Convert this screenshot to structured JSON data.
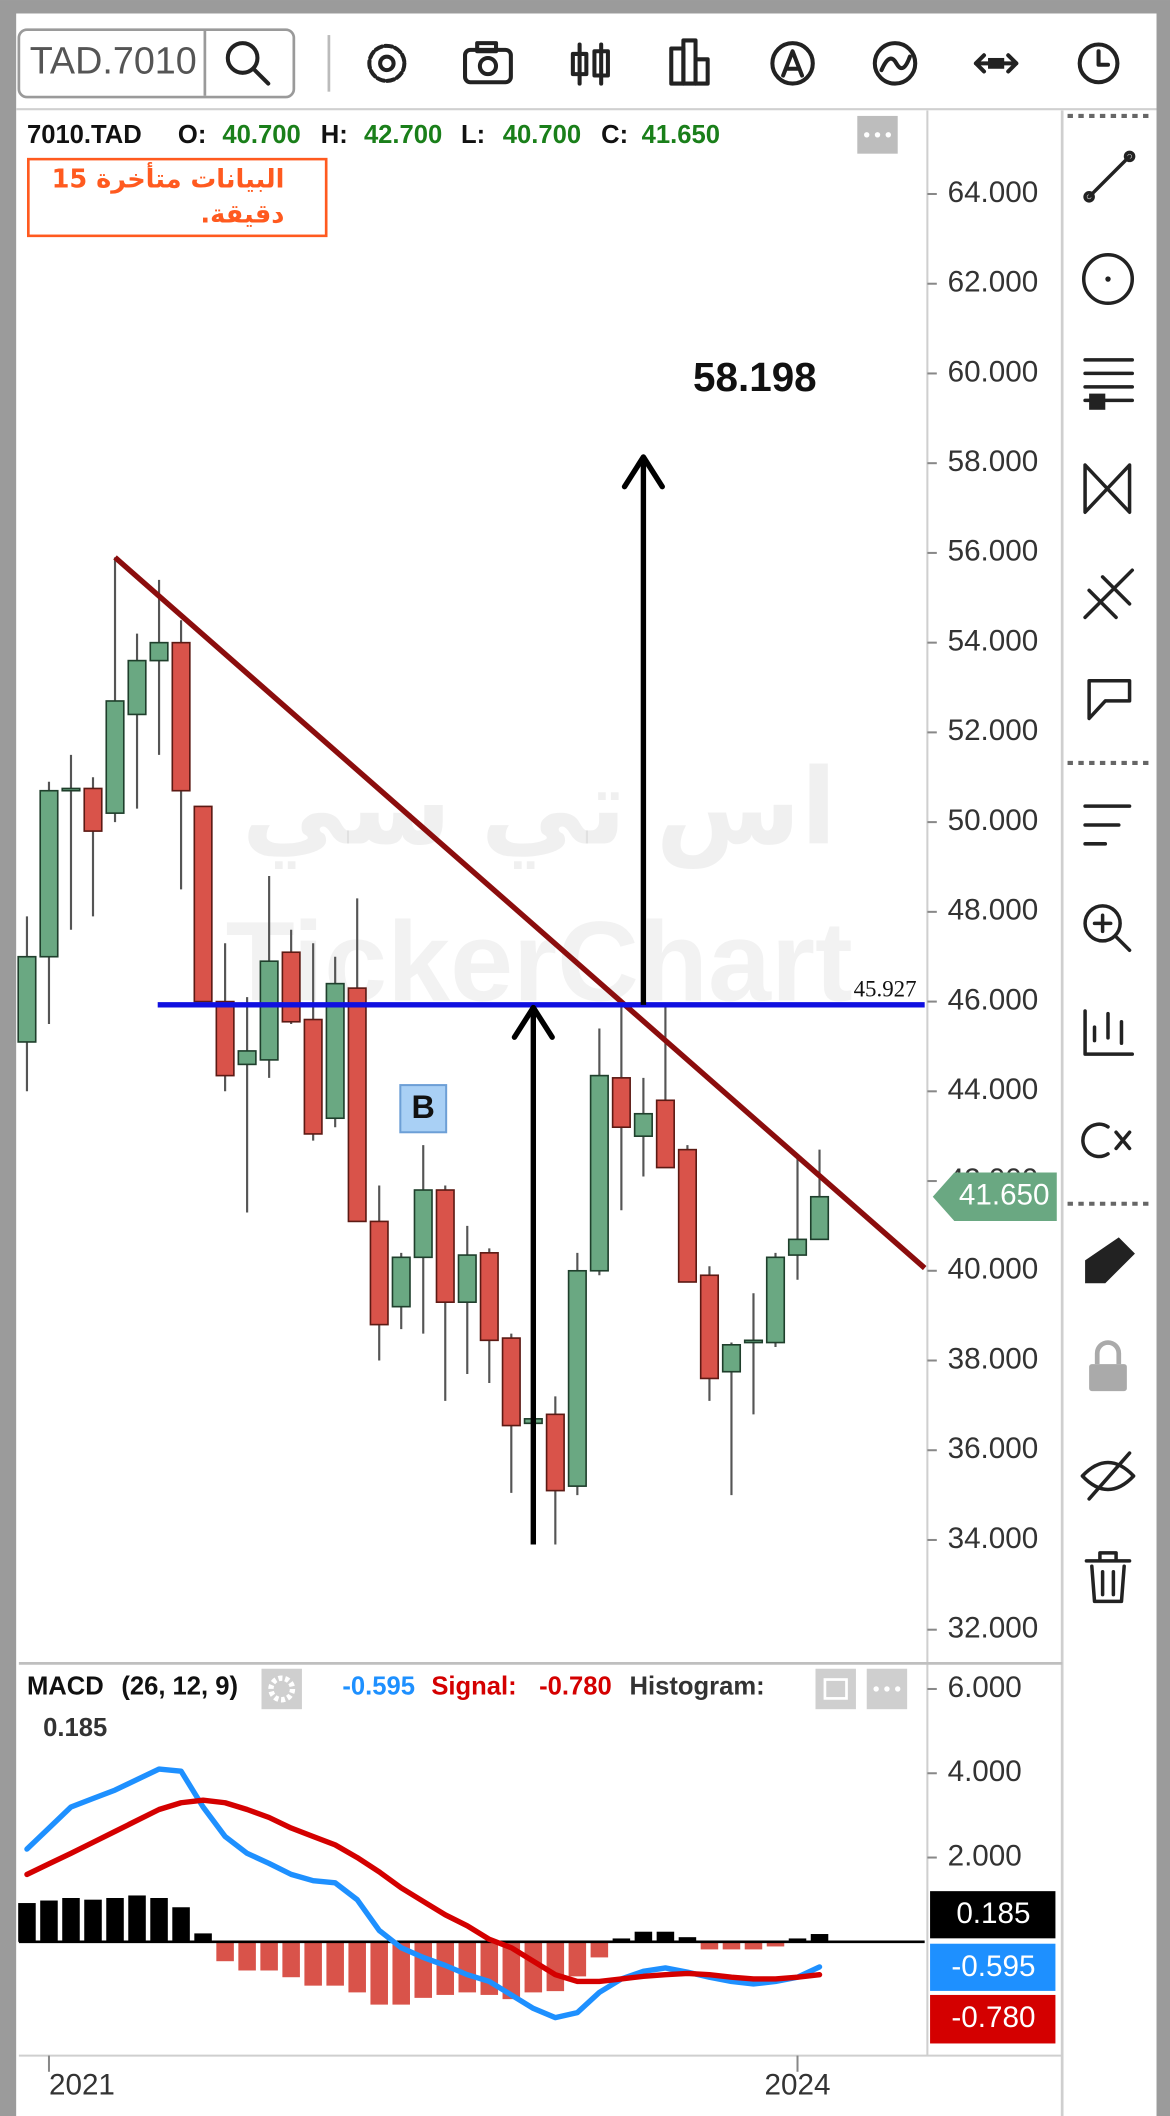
{
  "toolbar": {
    "symbol": "TAD.7010"
  },
  "header": {
    "symbol": "7010.TAD",
    "fields": [
      {
        "key": "O:",
        "value": "40.700"
      },
      {
        "key": "H:",
        "value": "42.700"
      },
      {
        "key": "L:",
        "value": "40.700"
      },
      {
        "key": "C:",
        "value": "41.650"
      }
    ]
  },
  "notice": "البيانات متأخرة 15 دقيقة.",
  "watermark": {
    "arabic": "اس تي سي",
    "latin": "TickerChart"
  },
  "chart_data": [
    {
      "type": "candlestick",
      "categories": [
        null,
        "2021",
        null,
        null,
        null,
        null,
        null,
        null,
        null,
        null,
        null,
        null,
        null,
        null,
        null,
        null,
        null,
        null,
        null,
        null,
        null,
        null,
        null,
        null,
        null,
        null,
        null,
        null,
        null,
        null,
        null,
        null,
        null,
        null,
        null,
        "2024",
        null
      ],
      "open": [
        45.1,
        47.0,
        50.7,
        50.75,
        50.2,
        52.4,
        53.6,
        54.0,
        50.35,
        46.0,
        44.6,
        44.7,
        47.1,
        45.6,
        43.4,
        46.3,
        41.1,
        39.2,
        40.3,
        41.8,
        39.3,
        40.4,
        38.5,
        36.6,
        36.8,
        35.2,
        40.0,
        44.3,
        43.0,
        43.8,
        42.7,
        39.9,
        37.75,
        38.4,
        38.4,
        40.35,
        40.7
      ],
      "high": [
        47.9,
        50.9,
        51.5,
        51.0,
        55.9,
        54.2,
        55.4,
        54.5,
        50.35,
        47.3,
        46.1,
        48.8,
        47.6,
        47.3,
        47.0,
        48.3,
        41.9,
        40.4,
        42.8,
        41.9,
        41.0,
        40.5,
        38.6,
        37.0,
        37.2,
        40.4,
        45.4,
        46.0,
        44.3,
        45.9,
        42.8,
        40.1,
        38.4,
        39.5,
        40.4,
        42.6,
        42.7
      ],
      "low": [
        44.0,
        45.5,
        47.6,
        47.9,
        50.0,
        50.3,
        51.5,
        48.5,
        46.0,
        44.0,
        41.3,
        44.3,
        45.5,
        42.9,
        43.2,
        41.1,
        38.0,
        38.7,
        38.6,
        37.1,
        37.7,
        37.5,
        35.05,
        34.1,
        33.9,
        35.0,
        39.9,
        41.35,
        42.1,
        42.3,
        39.75,
        37.1,
        35.0,
        36.8,
        38.3,
        39.8,
        40.7
      ],
      "close": [
        47.0,
        50.7,
        50.75,
        49.8,
        52.7,
        53.6,
        54.0,
        50.7,
        46.0,
        44.35,
        44.9,
        46.9,
        45.55,
        43.05,
        46.4,
        41.1,
        38.8,
        40.3,
        41.8,
        39.3,
        40.35,
        38.45,
        36.55,
        36.7,
        35.1,
        40.0,
        44.35,
        43.2,
        43.5,
        42.3,
        39.75,
        37.6,
        38.35,
        38.45,
        40.3,
        40.7,
        41.65
      ],
      "colors": {
        "up": "#6aa882",
        "down": "#d9534a"
      },
      "ylim": [
        31.28,
        65.86
      ],
      "yticks": [
        {
          "value": 32,
          "label": "32.000"
        },
        {
          "value": 34,
          "label": "34.000"
        },
        {
          "value": 36,
          "label": "36.000"
        },
        {
          "value": 38,
          "label": "38.000"
        },
        {
          "value": 40,
          "label": "40.000"
        },
        {
          "value": 42,
          "label": "42.000"
        },
        {
          "value": 44,
          "label": "44.000"
        },
        {
          "value": 46,
          "label": "46.000"
        },
        {
          "value": 48,
          "label": "48.000"
        },
        {
          "value": 50,
          "label": "50.000"
        },
        {
          "value": 52,
          "label": "52.000"
        },
        {
          "value": 54,
          "label": "54.000"
        },
        {
          "value": 56,
          "label": "56.000"
        },
        {
          "value": 58,
          "label": "58.000"
        },
        {
          "value": 60,
          "label": "60.000"
        },
        {
          "value": 62,
          "label": "62.000"
        },
        {
          "value": 64,
          "label": "64.000"
        }
      ],
      "last_price": {
        "value": 41.65,
        "label": "41.650"
      },
      "hline": 45.927,
      "target": 58.198,
      "trendline": [
        55.9,
        40.06
      ],
      "marker": "B"
    },
    {
      "type": "macd",
      "title": "MACD",
      "params": "(26, 12, 9)",
      "series": [
        {
          "type": "line",
          "color": "#1e90ff",
          "value_label": "-0.595",
          "values": [
            2.2,
            2.7,
            3.2,
            3.4,
            3.6,
            3.85,
            4.1,
            4.05,
            3.2,
            2.5,
            2.1,
            1.86,
            1.6,
            1.45,
            1.4,
            1.0,
            0.27,
            -0.14,
            -0.37,
            -0.56,
            -0.78,
            -0.94,
            -1.26,
            -1.58,
            -1.8,
            -1.68,
            -1.2,
            -0.88,
            -0.7,
            -0.62,
            -0.72,
            -0.84,
            -0.94,
            -1.0,
            -0.94,
            -0.84,
            -0.595
          ]
        },
        {
          "type": "line",
          "name": "Signal:",
          "color": "#d40000",
          "value_label": "-0.780",
          "values": [
            1.6,
            1.85,
            2.1,
            2.36,
            2.62,
            2.88,
            3.14,
            3.3,
            3.36,
            3.3,
            3.14,
            2.95,
            2.7,
            2.5,
            2.3,
            2.0,
            1.66,
            1.28,
            0.96,
            0.64,
            0.38,
            0.06,
            -0.14,
            -0.46,
            -0.78,
            -0.94,
            -0.94,
            -0.88,
            -0.82,
            -0.78,
            -0.75,
            -0.78,
            -0.84,
            -0.88,
            -0.88,
            -0.84,
            -0.78
          ]
        },
        {
          "type": "bar",
          "name": "Histogram:",
          "colors": {
            "up": "#000000",
            "down": "#d9534a"
          },
          "value_label": "0.185",
          "values": [
            0.92,
            0.98,
            1.04,
            1.0,
            1.04,
            1.1,
            1.04,
            0.82,
            0.2,
            -0.46,
            -0.68,
            -0.68,
            -0.84,
            -1.04,
            -1.04,
            -1.2,
            -1.49,
            -1.49,
            -1.33,
            -1.26,
            -1.2,
            -1.26,
            -1.36,
            -1.2,
            -1.17,
            -0.82,
            -0.37,
            0.08,
            0.24,
            0.24,
            0.11,
            -0.18,
            -0.18,
            -0.18,
            -0.11,
            0.08,
            0.185
          ]
        }
      ],
      "ylim": [
        -2.7,
        6.576
      ],
      "yticks": [
        {
          "value": 2,
          "label": "2.000"
        },
        {
          "value": 4,
          "label": "4.000"
        },
        {
          "value": 6,
          "label": "6.000"
        }
      ]
    }
  ]
}
